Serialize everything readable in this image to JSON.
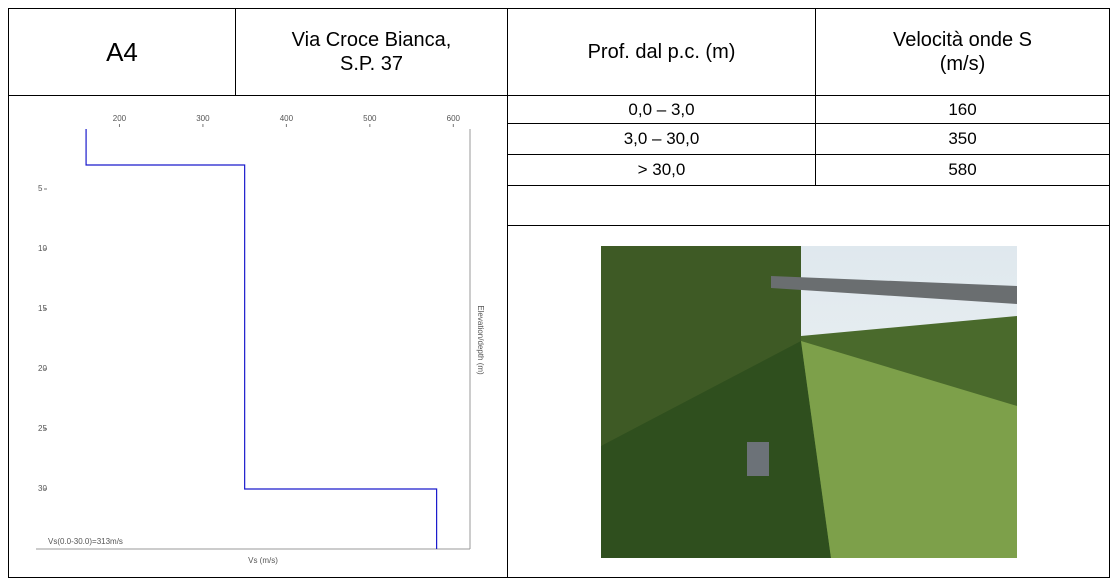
{
  "header": {
    "id": "A4",
    "location": "Via Croce Bianca, S.P. 37",
    "depth_col": "Prof. dal p.c. (m)",
    "velocity_col": "Velocità onde S (m/s)"
  },
  "table": {
    "rows": [
      [
        "0,0 – 3,0",
        "160"
      ],
      [
        "3,0 – 30,0",
        "350"
      ],
      [
        "> 30,0",
        "580"
      ]
    ]
  },
  "chart_data": {
    "type": "step",
    "xlabel": "Vs (m/s)",
    "ylabel": "Elevation/depth (m)",
    "annotation": "Vs(0.0-30.0)=313m/s",
    "series": [
      {
        "color": "#1a1acc",
        "x": [
          160,
          160,
          350,
          350,
          580,
          580
        ],
        "values": [
          0,
          3,
          3,
          30,
          30,
          35
        ]
      }
    ],
    "xlim": [
      100,
      620
    ],
    "xticks": [
      200,
      300,
      400,
      500,
      600
    ],
    "ylim": [
      0,
      35
    ],
    "yticks": [
      5,
      10,
      15,
      20,
      25,
      30
    ]
  }
}
